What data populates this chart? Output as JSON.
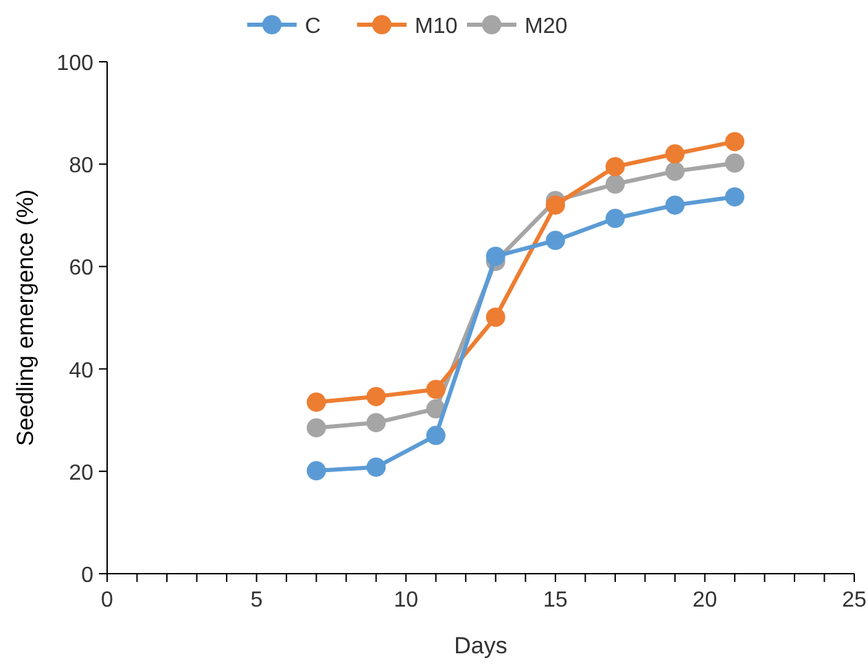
{
  "chart_data": {
    "type": "line",
    "xlabel": "Days",
    "ylabel": "Seedling emergence (%)",
    "x": [
      7,
      9,
      11,
      13,
      15,
      17,
      19,
      21
    ],
    "series": [
      {
        "name": "C",
        "color": "#5b9bd5",
        "values": [
          20.1,
          20.8,
          27,
          62,
          65.1,
          69.4,
          72,
          73.6
        ]
      },
      {
        "name": "M10",
        "color": "#ed7d31",
        "values": [
          33.5,
          34.6,
          36,
          50.1,
          72,
          79.5,
          82,
          84.4
        ]
      },
      {
        "name": "M20",
        "color": "#a5a5a5",
        "values": [
          28.5,
          29.5,
          32.2,
          61,
          72.9,
          76.1,
          78.6,
          80.2
        ]
      }
    ],
    "xlim": [
      0,
      25
    ],
    "xticks": [
      0,
      {
        "value": 1,
        "label": null
      },
      {
        "value": 2,
        "label": null
      },
      {
        "value": 3,
        "label": null
      },
      {
        "value": 4,
        "label": null
      },
      5,
      {
        "value": 6,
        "label": null
      },
      {
        "value": 7,
        "label": null
      },
      {
        "value": 8,
        "label": null
      },
      {
        "value": 9,
        "label": null
      },
      10,
      {
        "value": 11,
        "label": null
      },
      {
        "value": 12,
        "label": null
      },
      {
        "value": 13,
        "label": null
      },
      {
        "value": 14,
        "label": null
      },
      15,
      {
        "value": 16,
        "label": null
      },
      {
        "value": 17,
        "label": null
      },
      {
        "value": 18,
        "label": null
      },
      {
        "value": 19,
        "label": null
      },
      20,
      {
        "value": 21,
        "label": null
      },
      {
        "value": 22,
        "label": null
      },
      {
        "value": 23,
        "label": null
      },
      {
        "value": 24,
        "label": null
      },
      25
    ],
    "ylim": [
      0,
      100
    ],
    "yticks": [
      0,
      20,
      40,
      60,
      80,
      100
    ],
    "grid": false,
    "legend": "top",
    "marker": "circle",
    "line_style": "solid"
  }
}
